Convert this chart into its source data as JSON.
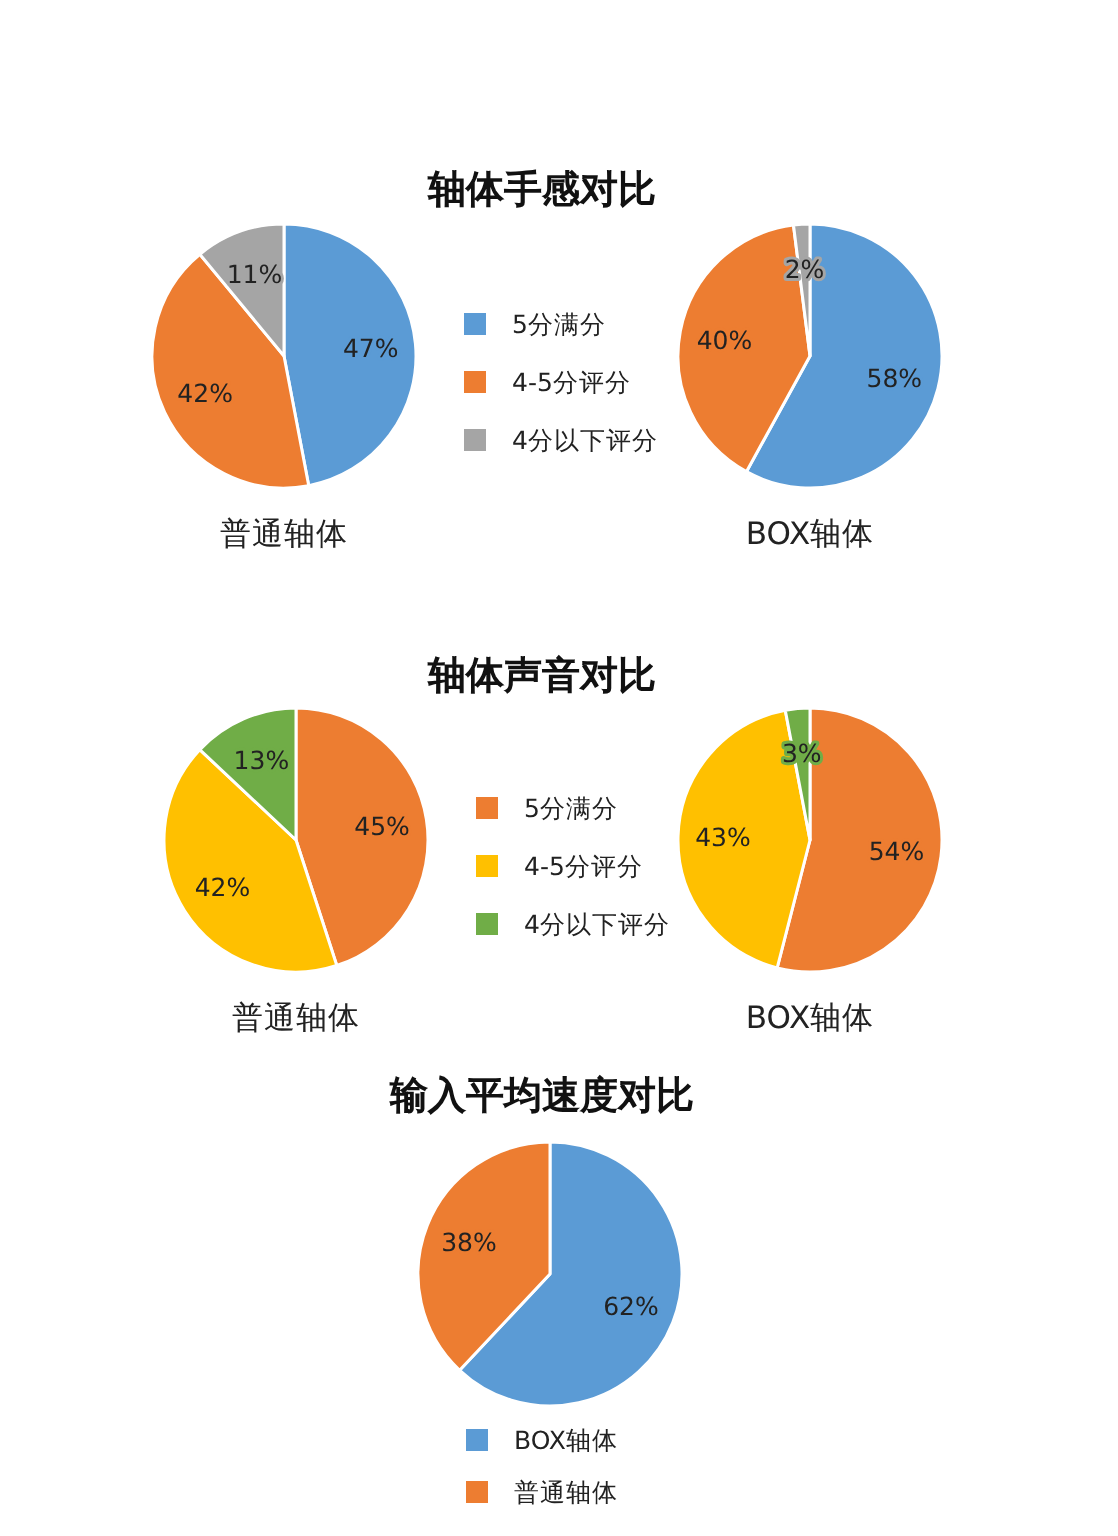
{
  "chart_data": [
    {
      "type": "pie",
      "title": "轴体手感对比",
      "categories": [
        "5分满分",
        "4-5分评分",
        "4分以下评分"
      ],
      "colors": [
        "#5b9bd5",
        "#ed7d31",
        "#a5a5a5"
      ],
      "legend": "right",
      "series": [
        {
          "name": "普通轴体",
          "values": [
            47,
            42,
            11
          ],
          "value_labels": [
            "47%",
            "42%",
            "11%"
          ]
        },
        {
          "name": "BOX轴体",
          "values": [
            58,
            40,
            2
          ],
          "value_labels": [
            "58%",
            "40%",
            "2%"
          ]
        }
      ]
    },
    {
      "type": "pie",
      "title": "轴体声音对比",
      "categories": [
        "5分满分",
        "4-5分评分",
        "4分以下评分"
      ],
      "colors": [
        "#ed7d31",
        "#ffc000",
        "#70ad47"
      ],
      "legend": "right",
      "series": [
        {
          "name": "普通轴体",
          "values": [
            45,
            42,
            13
          ],
          "value_labels": [
            "45%",
            "42%",
            "13%"
          ]
        },
        {
          "name": "BOX轴体",
          "values": [
            54,
            43,
            3
          ],
          "value_labels": [
            "54%",
            "43%",
            "3%"
          ]
        }
      ]
    },
    {
      "type": "pie",
      "title": "输入平均速度对比",
      "categories": [
        "BOX轴体",
        "普通轴体"
      ],
      "colors": [
        "#5b9bd5",
        "#ed7d31"
      ],
      "legend": "bottom",
      "values": [
        62,
        38
      ],
      "value_labels": [
        "62%",
        "38%"
      ]
    }
  ]
}
